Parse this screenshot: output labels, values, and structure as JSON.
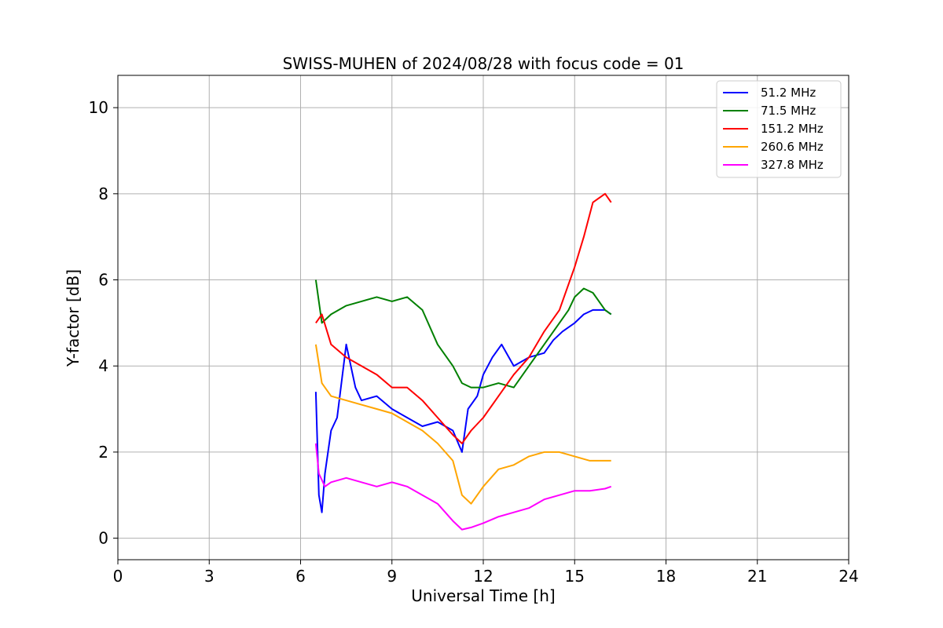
{
  "chart_data": {
    "type": "line",
    "title": "SWISS-MUHEN of 2024/08/28 with focus code = 01",
    "xlabel": "Universal Time [h]",
    "ylabel": "Y-factor [dB]",
    "xlim": [
      0,
      24
    ],
    "ylim": [
      -0.5,
      10.75
    ],
    "x_ticks": [
      0,
      3,
      6,
      9,
      12,
      15,
      18,
      21,
      24
    ],
    "y_ticks": [
      0,
      2,
      4,
      6,
      8,
      10
    ],
    "grid": true,
    "legend_position": "top-right",
    "series": [
      {
        "name": " 51.2 MHz",
        "color": "#0000ff",
        "x": [
          6.5,
          6.6,
          6.7,
          6.8,
          7.0,
          7.2,
          7.5,
          7.8,
          8.0,
          8.5,
          9.0,
          9.5,
          10.0,
          10.5,
          11.0,
          11.3,
          11.5,
          11.8,
          12.0,
          12.3,
          12.6,
          13.0,
          13.5,
          14.0,
          14.3,
          14.6,
          15.0,
          15.3,
          15.6,
          16.0,
          16.2
        ],
        "y": [
          3.4,
          1.0,
          0.6,
          1.5,
          2.5,
          2.8,
          4.5,
          3.5,
          3.2,
          3.3,
          3.0,
          2.8,
          2.6,
          2.7,
          2.5,
          2.0,
          3.0,
          3.3,
          3.8,
          4.2,
          4.5,
          4.0,
          4.2,
          4.3,
          4.6,
          4.8,
          5.0,
          5.2,
          5.3,
          5.3,
          5.2
        ]
      },
      {
        "name": " 71.5 MHz",
        "color": "#008000",
        "x": [
          6.5,
          6.7,
          7.0,
          7.5,
          8.0,
          8.5,
          9.0,
          9.5,
          10.0,
          10.5,
          11.0,
          11.3,
          11.6,
          12.0,
          12.5,
          13.0,
          13.5,
          14.0,
          14.5,
          14.8,
          15.0,
          15.3,
          15.6,
          16.0,
          16.2
        ],
        "y": [
          6.0,
          5.0,
          5.2,
          5.4,
          5.5,
          5.6,
          5.5,
          5.6,
          5.3,
          4.5,
          4.0,
          3.6,
          3.5,
          3.5,
          3.6,
          3.5,
          4.0,
          4.5,
          5.0,
          5.3,
          5.6,
          5.8,
          5.7,
          5.3,
          5.2
        ]
      },
      {
        "name": "151.2 MHz",
        "color": "#ff0000",
        "x": [
          6.5,
          6.7,
          7.0,
          7.5,
          8.0,
          8.5,
          9.0,
          9.5,
          10.0,
          10.5,
          11.0,
          11.3,
          11.6,
          12.0,
          12.5,
          13.0,
          13.5,
          14.0,
          14.5,
          15.0,
          15.3,
          15.6,
          16.0,
          16.2
        ],
        "y": [
          5.0,
          5.2,
          4.5,
          4.2,
          4.0,
          3.8,
          3.5,
          3.5,
          3.2,
          2.8,
          2.4,
          2.2,
          2.5,
          2.8,
          3.3,
          3.8,
          4.2,
          4.8,
          5.3,
          6.3,
          7.0,
          7.8,
          8.0,
          7.8
        ]
      },
      {
        "name": "260.6 MHz",
        "color": "#ffa500",
        "x": [
          6.5,
          6.7,
          7.0,
          7.5,
          8.0,
          8.5,
          9.0,
          9.5,
          10.0,
          10.5,
          11.0,
          11.3,
          11.6,
          12.0,
          12.5,
          13.0,
          13.5,
          14.0,
          14.5,
          15.0,
          15.5,
          16.0,
          16.2
        ],
        "y": [
          4.5,
          3.6,
          3.3,
          3.2,
          3.1,
          3.0,
          2.9,
          2.7,
          2.5,
          2.2,
          1.8,
          1.0,
          0.8,
          1.2,
          1.6,
          1.7,
          1.9,
          2.0,
          2.0,
          1.9,
          1.8,
          1.8,
          1.8
        ]
      },
      {
        "name": "327.8 MHz",
        "color": "#ff00ff",
        "x": [
          6.5,
          6.6,
          6.8,
          7.0,
          7.5,
          8.0,
          8.5,
          9.0,
          9.5,
          10.0,
          10.5,
          11.0,
          11.3,
          11.6,
          12.0,
          12.5,
          13.0,
          13.5,
          14.0,
          14.5,
          15.0,
          15.5,
          16.0,
          16.2
        ],
        "y": [
          2.2,
          1.5,
          1.2,
          1.3,
          1.4,
          1.3,
          1.2,
          1.3,
          1.2,
          1.0,
          0.8,
          0.4,
          0.2,
          0.25,
          0.35,
          0.5,
          0.6,
          0.7,
          0.9,
          1.0,
          1.1,
          1.1,
          1.15,
          1.2
        ]
      }
    ]
  }
}
